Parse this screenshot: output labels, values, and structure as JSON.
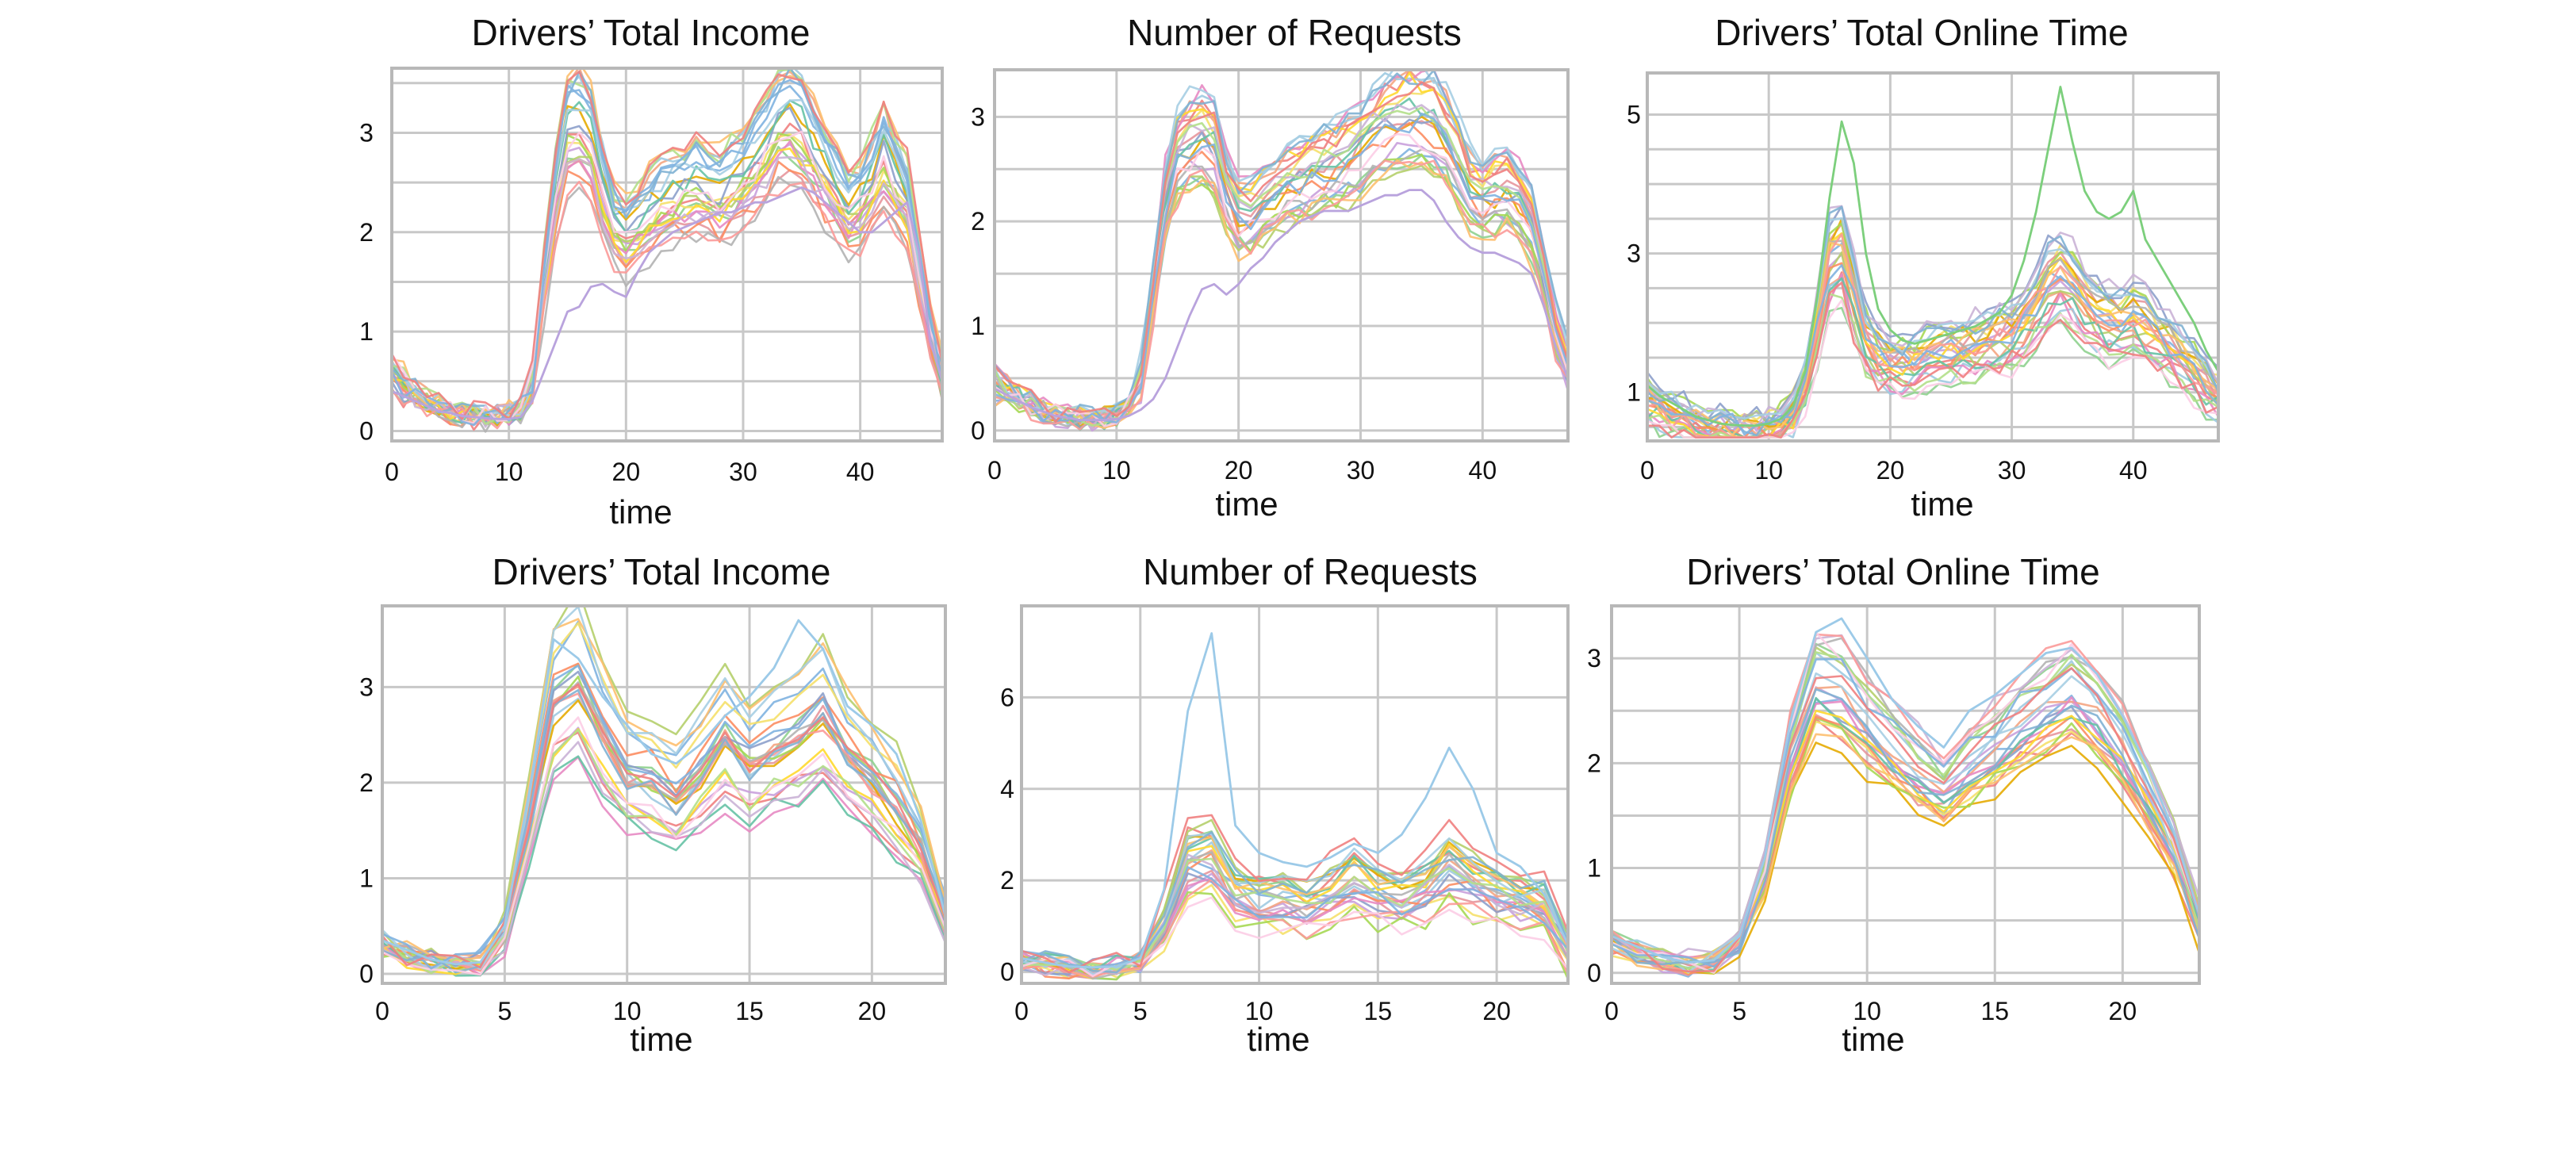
{
  "figure": {
    "background": "#ffffff",
    "grid_color": "#c8c8c8",
    "frame_color": "#b8b8b8",
    "palette": [
      "#7fb3e0",
      "#f08080",
      "#8fd18f",
      "#f5e06a",
      "#c9a0dc",
      "#f4a582",
      "#9ecae1",
      "#e7969c",
      "#b5cf6b",
      "#e6ab02",
      "#a6d854",
      "#fc8d62",
      "#8da0cb",
      "#e78ac3",
      "#66c2a5",
      "#ffd92f",
      "#b3b3b3",
      "#fdbf6f",
      "#cab2d6",
      "#fb9a99",
      "#a6cee3",
      "#b2df8a",
      "#80b1d3",
      "#fccde5"
    ]
  },
  "chart_data": [
    {
      "type": "line",
      "title": "Drivers’ Total Income",
      "xlabel": "time",
      "ylabel": "",
      "xlim": [
        0,
        47
      ],
      "ylim": [
        -0.1,
        3.65
      ],
      "xticks": [
        0,
        10,
        20,
        30,
        40
      ],
      "yticks": [
        0,
        1,
        2,
        3
      ],
      "grid_x": [
        0,
        10,
        20,
        30,
        40
      ],
      "grid_y": [
        0,
        0.5,
        1,
        1.5,
        2,
        2.5,
        3,
        3.5
      ],
      "n_series": 26,
      "spread": 0.22,
      "outlier": {
        "name": "low trajectory",
        "values": [
          0.4,
          0.35,
          0.3,
          0.25,
          0.2,
          0.18,
          0.15,
          0.14,
          0.13,
          0.12,
          0.12,
          0.14,
          0.3,
          0.6,
          0.9,
          1.2,
          1.25,
          1.45,
          1.48,
          1.4,
          1.35,
          1.6,
          1.8,
          1.9,
          2.0,
          2.05,
          2.1,
          2.15,
          2.2,
          2.2,
          2.25,
          2.3,
          2.3,
          2.35,
          2.4,
          2.45,
          2.4,
          2.3,
          2.2,
          2.1,
          2.0,
          2.0,
          2.1,
          2.2,
          2.3,
          1.8,
          0.9,
          0.5
        ]
      },
      "series_mean": [
        0.6,
        0.45,
        0.38,
        0.3,
        0.24,
        0.19,
        0.16,
        0.15,
        0.14,
        0.15,
        0.16,
        0.22,
        0.45,
        1.5,
        2.4,
        3.0,
        3.05,
        2.9,
        2.4,
        2.05,
        1.95,
        2.05,
        2.2,
        2.3,
        2.35,
        2.4,
        2.45,
        2.4,
        2.35,
        2.45,
        2.55,
        2.7,
        2.85,
        3.05,
        3.1,
        3.0,
        2.8,
        2.6,
        2.4,
        2.2,
        2.3,
        2.5,
        2.75,
        2.5,
        2.3,
        1.6,
        1.0,
        0.55
      ]
    },
    {
      "type": "line",
      "title": "Number of Requests",
      "xlabel": "time",
      "ylabel": "",
      "xlim": [
        0,
        47
      ],
      "ylim": [
        -0.1,
        3.45
      ],
      "xticks": [
        0,
        10,
        20,
        30,
        40
      ],
      "yticks": [
        0,
        1,
        2,
        3
      ],
      "grid_x": [
        0,
        10,
        20,
        30,
        40
      ],
      "grid_y": [
        0,
        0.5,
        1,
        1.5,
        2,
        2.5,
        3
      ],
      "n_series": 26,
      "spread": 0.16,
      "outlier": {
        "name": "low trajectory",
        "values": [
          0.4,
          0.34,
          0.28,
          0.22,
          0.18,
          0.14,
          0.12,
          0.1,
          0.1,
          0.1,
          0.11,
          0.14,
          0.2,
          0.3,
          0.5,
          0.8,
          1.1,
          1.35,
          1.4,
          1.3,
          1.4,
          1.55,
          1.65,
          1.8,
          1.9,
          2.0,
          2.05,
          2.1,
          2.1,
          2.1,
          2.15,
          2.2,
          2.25,
          2.25,
          2.3,
          2.3,
          2.2,
          2.0,
          1.85,
          1.75,
          1.7,
          1.7,
          1.65,
          1.6,
          1.5,
          1.2,
          0.8,
          0.5
        ]
      },
      "series_mean": [
        0.45,
        0.38,
        0.3,
        0.25,
        0.2,
        0.16,
        0.13,
        0.11,
        0.11,
        0.12,
        0.15,
        0.25,
        0.5,
        1.3,
        2.2,
        2.6,
        2.75,
        2.8,
        2.7,
        2.3,
        2.05,
        2.05,
        2.15,
        2.25,
        2.35,
        2.4,
        2.45,
        2.5,
        2.55,
        2.6,
        2.7,
        2.8,
        2.9,
        2.95,
        3.0,
        3.0,
        2.95,
        2.8,
        2.55,
        2.3,
        2.2,
        2.25,
        2.3,
        2.2,
        1.95,
        1.5,
        0.95,
        0.6
      ]
    },
    {
      "type": "line",
      "title": "Drivers’ Total Online Time",
      "xlabel": "time",
      "ylabel": "",
      "xlim": [
        0,
        47
      ],
      "ylim": [
        0.3,
        5.6
      ],
      "xticks": [
        0,
        10,
        20,
        30,
        40
      ],
      "yticks": [
        1,
        3,
        5
      ],
      "grid_x": [
        0,
        10,
        20,
        30,
        40
      ],
      "grid_y": [
        0.5,
        1,
        1.5,
        2,
        2.5,
        3,
        3.5,
        4,
        4.5,
        5
      ],
      "n_series": 26,
      "spread": 0.2,
      "outlier": {
        "name": "high peak trajectory",
        "values": [
          1.1,
          0.95,
          0.85,
          0.75,
          0.65,
          0.6,
          0.55,
          0.53,
          0.52,
          0.52,
          0.55,
          0.62,
          0.8,
          1.3,
          2.4,
          3.8,
          4.9,
          4.3,
          3.0,
          2.2,
          1.9,
          1.75,
          1.7,
          1.75,
          1.8,
          1.85,
          1.9,
          1.95,
          2.05,
          2.15,
          2.4,
          2.9,
          3.6,
          4.5,
          5.4,
          4.6,
          3.9,
          3.6,
          3.5,
          3.6,
          3.9,
          3.2,
          2.9,
          2.6,
          2.3,
          2.0,
          1.6,
          1.3
        ]
      },
      "series_mean": [
        0.95,
        0.82,
        0.72,
        0.65,
        0.58,
        0.53,
        0.5,
        0.48,
        0.48,
        0.48,
        0.5,
        0.58,
        0.75,
        1.15,
        2.0,
        2.9,
        3.1,
        2.4,
        1.8,
        1.55,
        1.45,
        1.45,
        1.5,
        1.55,
        1.6,
        1.62,
        1.65,
        1.7,
        1.75,
        1.8,
        1.9,
        2.05,
        2.3,
        2.6,
        2.75,
        2.55,
        2.3,
        2.15,
        2.05,
        2.0,
        2.1,
        2.0,
        1.85,
        1.7,
        1.55,
        1.35,
        1.15,
        0.95
      ]
    },
    {
      "type": "line",
      "title": "Drivers’ Total Income",
      "xlabel": "time",
      "ylabel": "",
      "xlim": [
        0,
        23
      ],
      "ylim": [
        -0.1,
        3.85
      ],
      "xticks": [
        0,
        5,
        10,
        15,
        20
      ],
      "yticks": [
        0,
        1,
        2,
        3
      ],
      "grid_x": [
        0,
        5,
        10,
        15,
        20
      ],
      "grid_y": [
        0,
        1,
        2,
        3
      ],
      "n_series": 26,
      "spread": 0.26,
      "outlier": {
        "name": "high peak trajectory",
        "values": [
          0.35,
          0.25,
          0.15,
          0.1,
          0.12,
          0.5,
          1.9,
          3.5,
          3.3,
          2.9,
          2.6,
          2.3,
          2.2,
          2.4,
          2.7,
          2.9,
          3.2,
          3.7,
          3.4,
          2.8,
          2.6,
          2.3,
          1.6,
          0.6
        ]
      },
      "series_mean": [
        0.3,
        0.2,
        0.12,
        0.09,
        0.11,
        0.45,
        1.6,
        2.85,
        3.05,
        2.55,
        2.1,
        2.05,
        1.85,
        2.15,
        2.5,
        2.2,
        2.35,
        2.5,
        2.75,
        2.3,
        2.05,
        1.75,
        1.35,
        0.55
      ]
    },
    {
      "type": "line",
      "title": "Number of Requests",
      "xlabel": "time",
      "ylabel": "",
      "xlim": [
        0,
        23
      ],
      "ylim": [
        -0.25,
        8.0
      ],
      "xticks": [
        0,
        5,
        10,
        15,
        20
      ],
      "yticks": [
        0,
        2,
        4,
        6
      ],
      "grid_x": [
        0,
        5,
        10,
        15,
        20
      ],
      "grid_y": [
        0,
        2,
        4,
        6
      ],
      "n_series": 26,
      "spread": 0.25,
      "outlier": {
        "name": "high peak trajectory",
        "values": [
          0.3,
          0.2,
          0.12,
          0.1,
          0.12,
          0.3,
          1.8,
          5.7,
          7.4,
          3.2,
          2.6,
          2.4,
          2.3,
          2.5,
          2.8,
          2.6,
          3.0,
          3.8,
          4.9,
          4.0,
          2.6,
          2.3,
          1.7,
          0.6
        ]
      },
      "series_mean": [
        0.25,
        0.17,
        0.1,
        0.08,
        0.1,
        0.22,
        1.0,
        2.45,
        2.5,
        1.75,
        1.55,
        1.55,
        1.45,
        1.7,
        2.0,
        1.75,
        1.65,
        1.8,
        2.25,
        1.95,
        1.7,
        1.55,
        1.4,
        0.5
      ]
    },
    {
      "type": "line",
      "title": "Drivers’ Total Online Time",
      "xlabel": "time",
      "ylabel": "",
      "xlim": [
        0,
        23
      ],
      "ylim": [
        -0.1,
        3.5
      ],
      "xticks": [
        0,
        5,
        10,
        15,
        20
      ],
      "yticks": [
        0,
        1,
        2,
        3
      ],
      "grid_x": [
        0,
        5,
        10,
        15,
        20
      ],
      "grid_y": [
        0,
        0.5,
        1,
        1.5,
        2,
        2.5,
        3,
        3.5
      ],
      "n_series": 26,
      "spread": 0.17,
      "outlier": {
        "name": "high peak trajectory",
        "values": [
          0.35,
          0.25,
          0.15,
          0.1,
          0.12,
          0.35,
          1.1,
          2.4,
          3.25,
          3.38,
          3.0,
          2.6,
          2.35,
          2.15,
          2.5,
          2.65,
          2.85,
          3.05,
          3.1,
          2.85,
          2.45,
          1.95,
          1.35,
          0.55
        ]
      },
      "series_mean": [
        0.3,
        0.2,
        0.12,
        0.09,
        0.1,
        0.32,
        0.95,
        2.1,
        2.85,
        2.75,
        2.45,
        2.2,
        1.95,
        1.75,
        2.0,
        2.2,
        2.4,
        2.6,
        2.75,
        2.55,
        2.2,
        1.75,
        1.2,
        0.5
      ]
    }
  ]
}
